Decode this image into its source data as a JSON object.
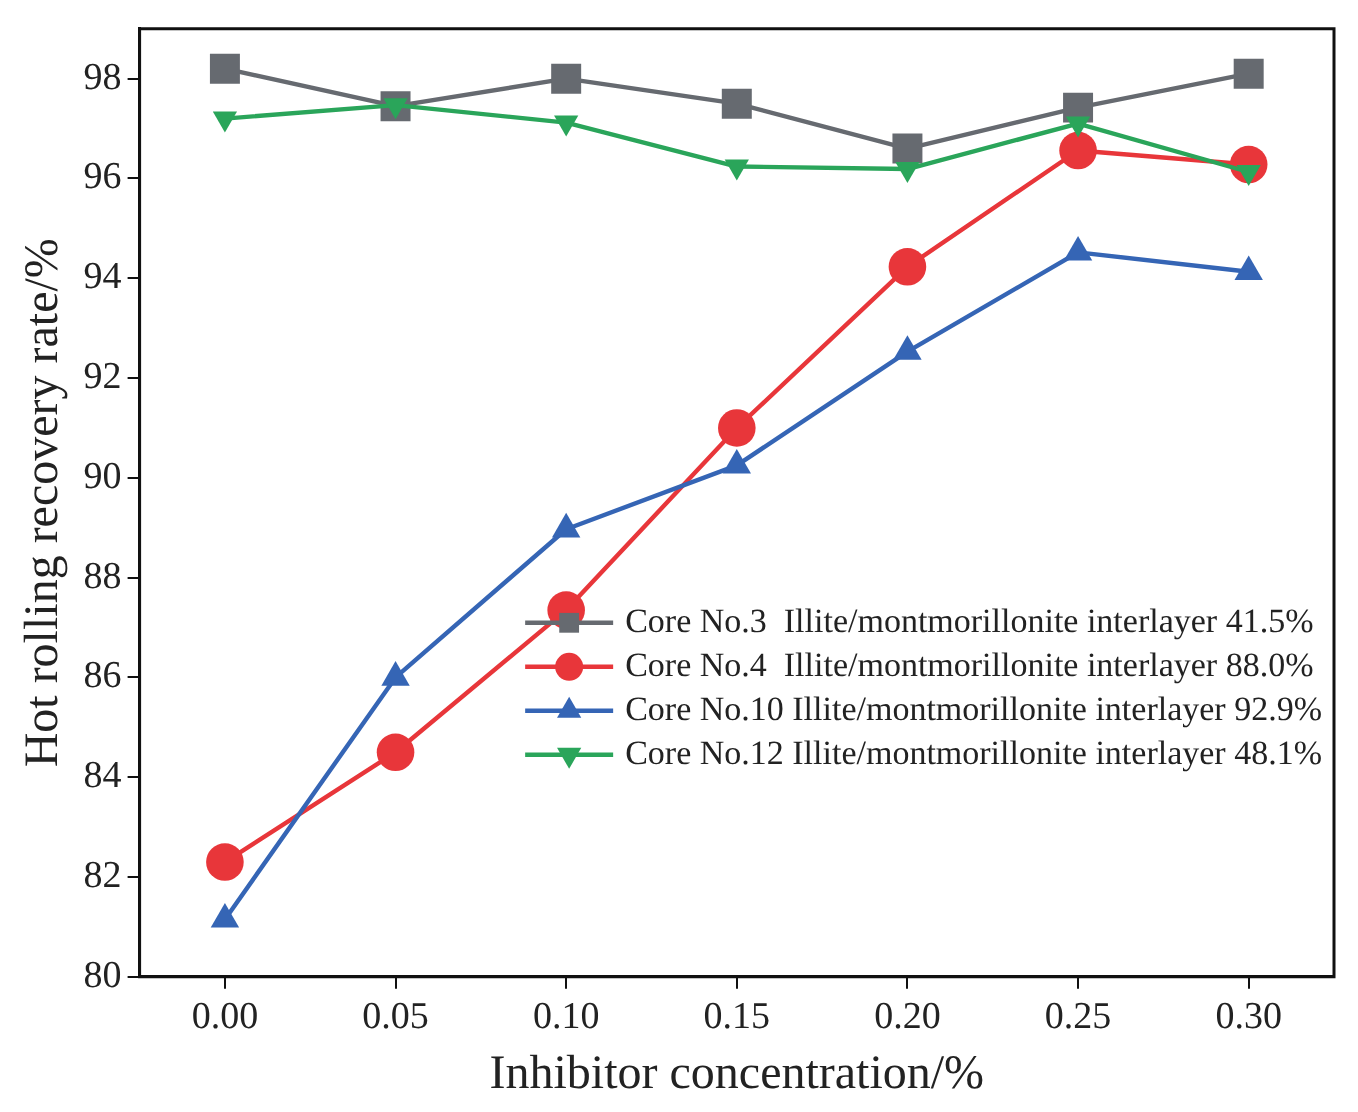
{
  "chart_data": {
    "type": "line",
    "xlabel": "Inhibitor concentration/%",
    "ylabel": "Hot rolling recovery rate/%",
    "x": [
      0,
      0.05,
      0.1,
      0.15,
      0.2,
      0.25,
      0.3
    ],
    "xlim": [
      -0.025,
      0.325
    ],
    "xticks": [
      {
        "value": 0,
        "label": "0.00"
      },
      {
        "value": 0.05,
        "label": "0.05"
      },
      {
        "value": 0.1,
        "label": "0.10"
      },
      {
        "value": 0.15,
        "label": "0.15"
      },
      {
        "value": 0.2,
        "label": "0.20"
      },
      {
        "value": 0.25,
        "label": "0.25"
      },
      {
        "value": 0.3,
        "label": "0.30"
      }
    ],
    "ylim": [
      80,
      99
    ],
    "yticks": [
      80,
      82,
      84,
      86,
      88,
      90,
      92,
      94,
      96,
      98
    ],
    "grid": false,
    "legend": "bottom right",
    "line_style": "solid",
    "series": [
      {
        "name": "Core No.3  Illite/montmorillonite interlayer 41.5%",
        "color": "#666a70",
        "marker": "square",
        "values": [
          98.2,
          97.45,
          98.0,
          97.5,
          96.6,
          97.42,
          98.1
        ]
      },
      {
        "name": "Core No.4  Illite/montmorillonite interlayer 88.0%",
        "color": "#e8363a",
        "marker": "circle",
        "values": [
          82.3,
          84.5,
          87.35,
          91.0,
          94.23,
          96.56,
          96.28
        ]
      },
      {
        "name": "Core No.10 Illite/montmorillonite interlayer 92.9%",
        "color": "#3565b5",
        "marker": "triangle",
        "values": [
          81.15,
          86.0,
          88.97,
          90.25,
          92.53,
          94.52,
          94.13
        ]
      },
      {
        "name": "Core No.12 Illite/montmorillonite interlayer 48.1%",
        "color": "#2aa55a",
        "marker": "triangle-down",
        "values": [
          97.2,
          97.47,
          97.12,
          96.24,
          96.19,
          97.1,
          96.13
        ]
      }
    ]
  }
}
